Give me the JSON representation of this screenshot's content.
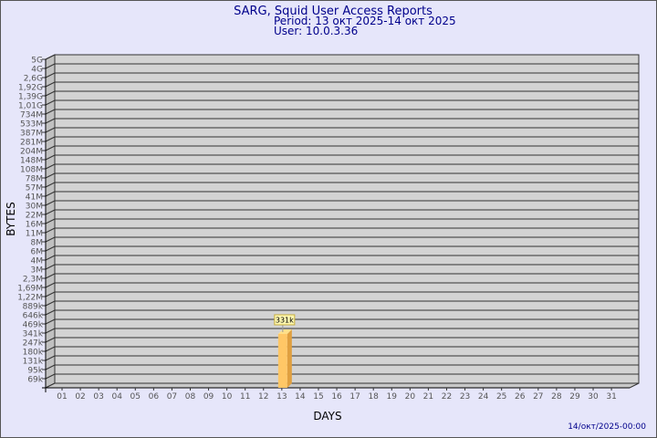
{
  "header": {
    "title": "SARG, Squid User Access Reports",
    "period": "Period: 13 окт 2025-14 окт 2025",
    "user": "User: 10.0.3.36"
  },
  "footer": {
    "timestamp": "14/окт/2025-00:00"
  },
  "chart_data": {
    "type": "bar",
    "title": "",
    "xlabel": "DAYS",
    "ylabel": "BYTES",
    "y_scale": "log",
    "grid": true,
    "y_tick_labels": [
      "5G",
      "4G",
      "2,6G",
      "1,92G",
      "1,39G",
      "1,01G",
      "734M",
      "533M",
      "387M",
      "281M",
      "204M",
      "148M",
      "108M",
      "78M",
      "57M",
      "41M",
      "30M",
      "22M",
      "16M",
      "11M",
      "8M",
      "6M",
      "4M",
      "3M",
      "2,3M",
      "1,69M",
      "1,22M",
      "889k",
      "646k",
      "469k",
      "341k",
      "247k",
      "180k",
      "131k",
      "95k",
      "69k"
    ],
    "categories": [
      "01",
      "02",
      "03",
      "04",
      "05",
      "06",
      "07",
      "08",
      "09",
      "10",
      "11",
      "12",
      "13",
      "14",
      "15",
      "16",
      "17",
      "18",
      "19",
      "20",
      "21",
      "22",
      "23",
      "24",
      "25",
      "26",
      "27",
      "28",
      "29",
      "30",
      "31"
    ],
    "bars": [
      {
        "day": "13",
        "value": 331000,
        "label": "331k"
      }
    ],
    "colors": {
      "background": "#e6e6fa",
      "plot": "#d3d3d3",
      "bar": "#ffc766",
      "bar_side": "#e0a040",
      "title": "#00008b"
    }
  }
}
